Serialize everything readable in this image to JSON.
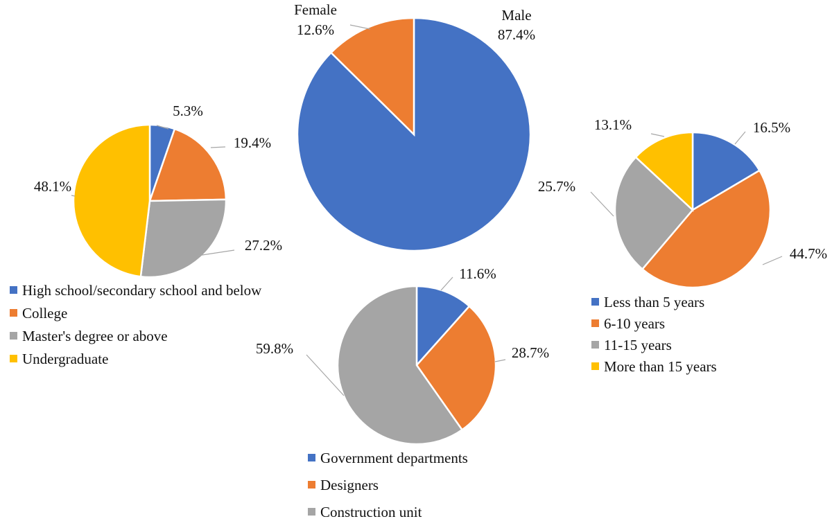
{
  "chart_data": [
    {
      "type": "pie",
      "slices": [
        {
          "label": "Male",
          "value": 87.4,
          "value_label": "87.4%",
          "color": "#4472C4"
        },
        {
          "label": "Female",
          "value": 12.6,
          "value_label": "12.6%",
          "color": "#ED7D31"
        }
      ]
    },
    {
      "type": "pie",
      "slices": [
        {
          "label": "High school/secondary school and below",
          "value": 5.3,
          "value_label": "5.3%",
          "color": "#4472C4"
        },
        {
          "label": "College",
          "value": 19.4,
          "value_label": "19.4%",
          "color": "#ED7D31"
        },
        {
          "label": "Master's degree or above",
          "value": 27.2,
          "value_label": "27.2%",
          "color": "#A5A5A5"
        },
        {
          "label": "Undergraduate",
          "value": 48.1,
          "value_label": "48.1%",
          "color": "#FFC000"
        }
      ],
      "legend": "bottom"
    },
    {
      "type": "pie",
      "slices": [
        {
          "label": "Less than 5 years",
          "value": 16.5,
          "value_label": "16.5%",
          "color": "#4472C4"
        },
        {
          "label": "6-10 years",
          "value": 44.7,
          "value_label": "44.7%",
          "color": "#ED7D31"
        },
        {
          "label": "11-15 years",
          "value": 25.7,
          "value_label": "25.7%",
          "color": "#A5A5A5"
        },
        {
          "label": "More than 15 years",
          "value": 13.1,
          "value_label": "13.1%",
          "color": "#FFC000"
        }
      ],
      "legend": "bottom"
    },
    {
      "type": "pie",
      "slices": [
        {
          "label": "Government departments",
          "value": 11.6,
          "value_label": "11.6%",
          "color": "#4472C4"
        },
        {
          "label": "Designers",
          "value": 28.7,
          "value_label": "28.7%",
          "color": "#ED7D31"
        },
        {
          "label": "Construction unit",
          "value": 59.8,
          "value_label": "59.8%",
          "color": "#A5A5A5"
        }
      ],
      "legend": "bottom"
    }
  ]
}
